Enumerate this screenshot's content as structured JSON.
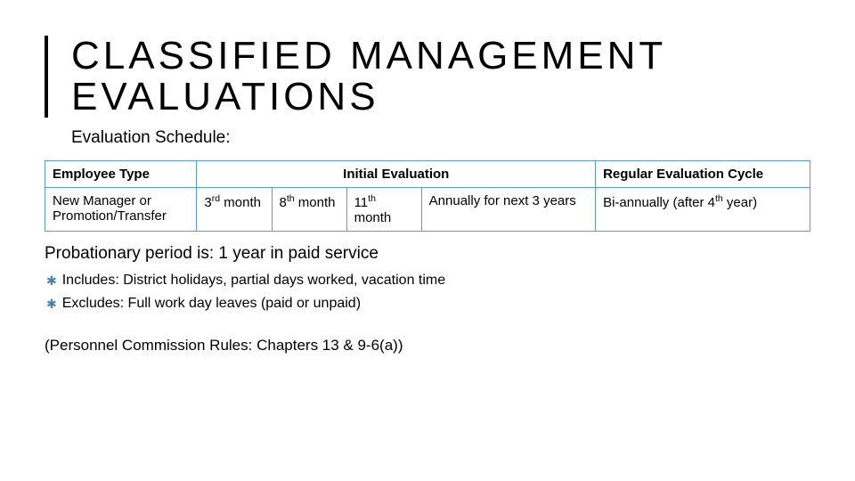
{
  "title": "CLASSIFIED MANAGEMENT EVALUATIONS",
  "subtitle": "Evaluation Schedule:",
  "table": {
    "headers": {
      "employee_type": "Employee Type",
      "initial_eval": "Initial Evaluation",
      "regular_cycle": "Regular Evaluation Cycle"
    },
    "row": {
      "employee_type": "New Manager or Promotion/Transfer",
      "c1_num": "3",
      "c1_sup": "rd",
      "c1_rest": " month",
      "c2_num": "8",
      "c2_sup": "th",
      "c2_rest": " month",
      "c3_num": "11",
      "c3_sup": "th",
      "c3_rest": " month",
      "c4": "Annually for next 3 years",
      "reg_pre": "Bi-annually (after 4",
      "reg_sup": "th",
      "reg_post": " year)"
    }
  },
  "probationary": "Probationary period is: 1 year in paid service",
  "includes_label": "Includes:",
  "includes_text": " District holidays, partial days worked, vacation time",
  "excludes_label": "Excludes:",
  "excludes_text": " Full work day leaves (paid or unpaid)",
  "citation": "(Personnel Commission Rules: Chapters 13 & 9-6(a))",
  "colors": {
    "border": "#5b9bd5",
    "bullet": "#4682b4",
    "text": "#000000",
    "bg": "#ffffff"
  },
  "fonts": {
    "title_size": 44,
    "title_letter_spacing": 4,
    "body_size": 15,
    "subtitle_size": 19
  }
}
